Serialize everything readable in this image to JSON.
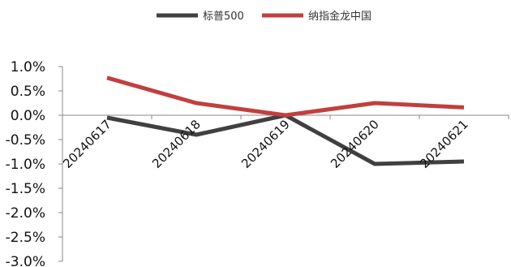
{
  "chart_data": {
    "type": "line",
    "title": "",
    "xlabel": "",
    "ylabel": "",
    "categories": [
      "20240617",
      "20240618",
      "20240619",
      "20240620",
      "20240621"
    ],
    "series": [
      {
        "name": "标普500",
        "color": "#404040",
        "values": [
          -0.05,
          -0.4,
          0.0,
          -1.0,
          -0.95
        ]
      },
      {
        "name": "纳指金龙中国",
        "color": "#c0403f",
        "values": [
          0.77,
          0.25,
          0.0,
          0.25,
          0.16
        ]
      }
    ],
    "y_ticks": [
      "1.0%",
      "0.5%",
      "0.0%",
      "-0.5%",
      "-1.0%",
      "-1.5%",
      "-2.0%",
      "-2.5%",
      "-3.0%"
    ],
    "ylim": [
      -3.0,
      1.0
    ],
    "unit": "%",
    "grid": false,
    "legend_position": "top-center"
  }
}
